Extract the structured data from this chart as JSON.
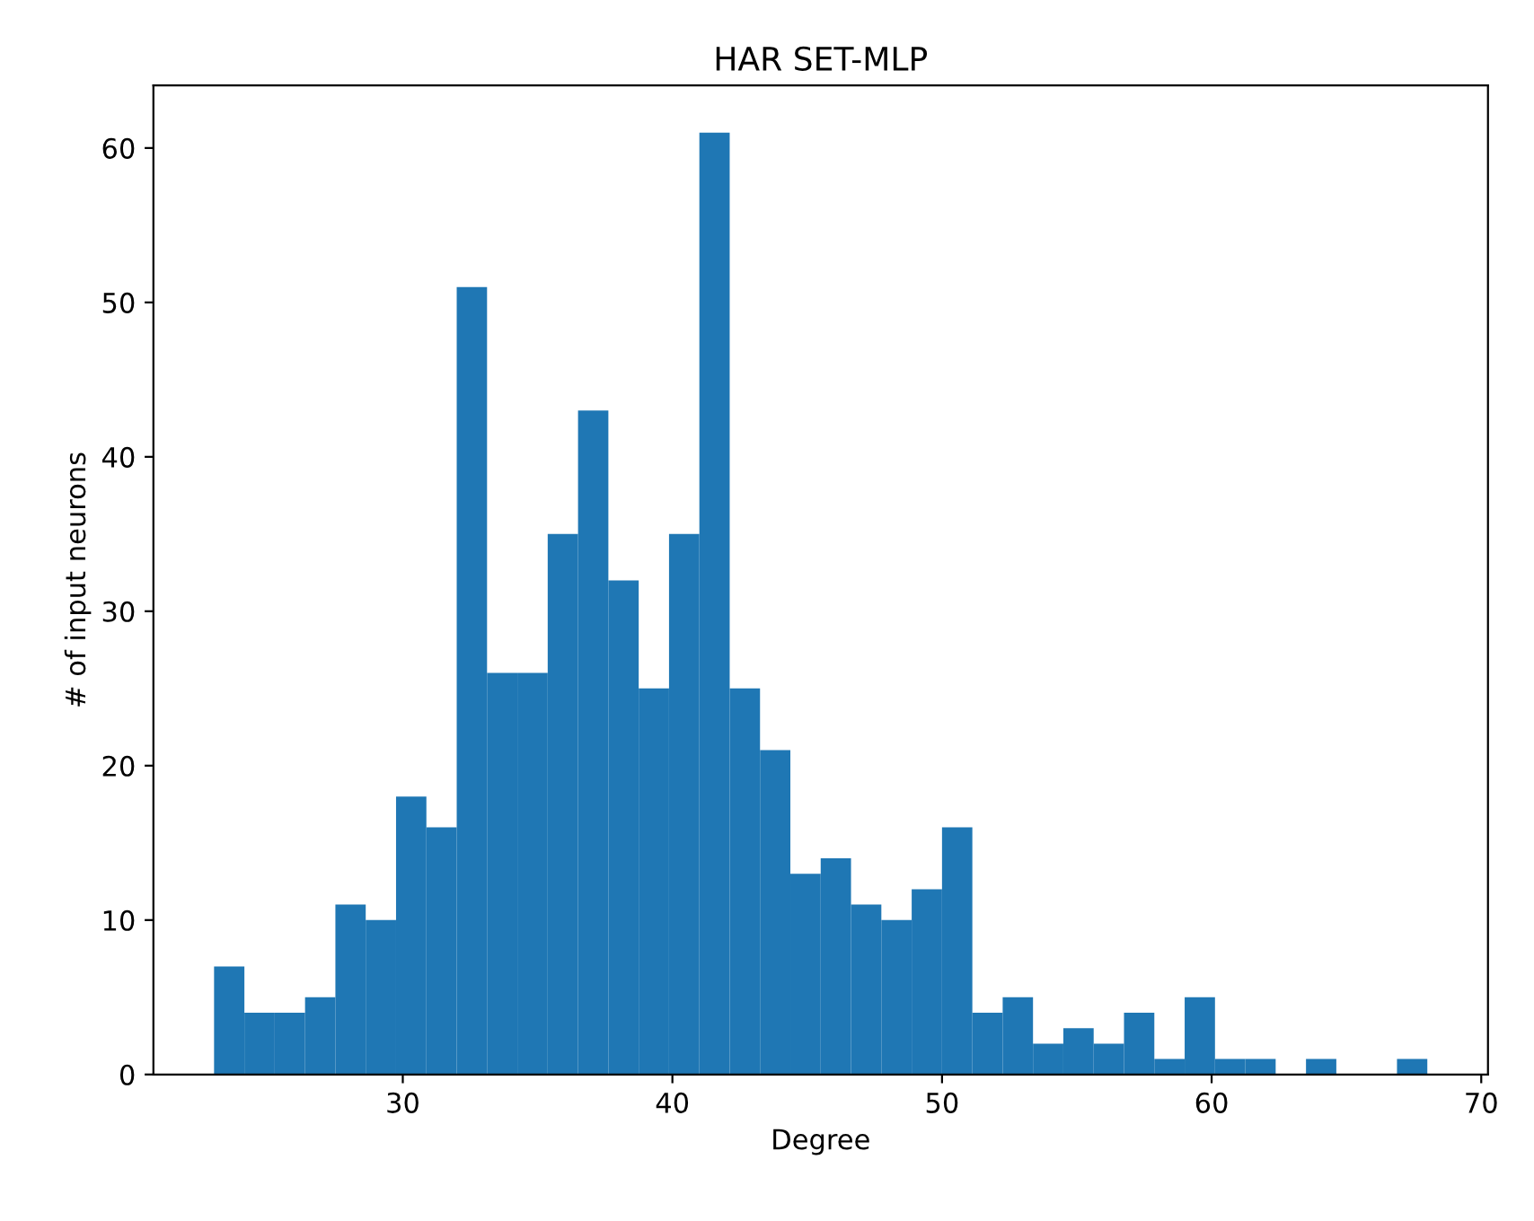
{
  "chart_data": {
    "type": "histogram",
    "title": "HAR SET-MLP",
    "xlabel": "Degree",
    "ylabel": "# of input neurons",
    "bins": [
      23,
      24.125,
      25.25,
      26.375,
      27.5,
      28.625,
      29.75,
      30.875,
      32,
      33.125,
      34.25,
      35.375,
      36.5,
      37.625,
      38.75,
      39.875,
      41,
      42.125,
      43.25,
      44.375,
      45.5,
      46.625,
      47.75,
      48.875,
      50,
      51.125,
      52.25,
      53.375,
      54.5,
      55.625,
      56.75,
      57.875,
      59,
      60.125,
      61.25,
      62.375,
      63.5,
      64.625,
      65.75,
      66.875,
      68
    ],
    "values": [
      7,
      4,
      4,
      5,
      11,
      10,
      18,
      16,
      51,
      26,
      26,
      35,
      43,
      32,
      25,
      35,
      61,
      25,
      21,
      13,
      14,
      11,
      10,
      12,
      16,
      4,
      5,
      2,
      3,
      2,
      4,
      1,
      5,
      1,
      1,
      0,
      1,
      0,
      0,
      1
    ],
    "color": "#1f77b4",
    "xlim": [
      20.75,
      70.25
    ],
    "xticks": [
      30,
      40,
      50,
      60,
      70
    ],
    "ylim": [
      0,
      64.05
    ],
    "yticks": [
      0,
      10,
      20,
      30,
      40,
      50,
      60
    ]
  }
}
